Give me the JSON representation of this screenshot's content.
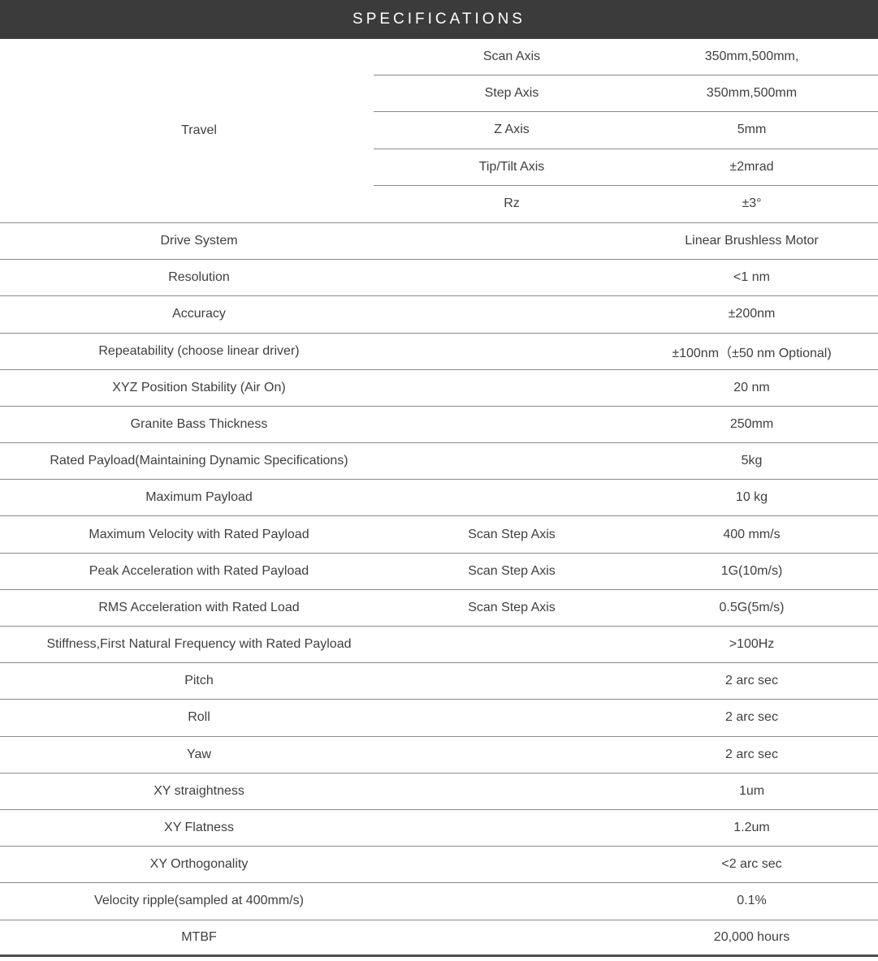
{
  "title": "SPECIFICATIONS",
  "colors": {
    "header_bg": "#3b3b3b",
    "header_text": "#ffffff",
    "body_text": "#3f3f3f",
    "divider": "#8a8a8a",
    "bottom_rule": "#4d4d4d"
  },
  "table": {
    "travel": {
      "label": "Travel",
      "rows": [
        {
          "param": "Scan Axis",
          "value": "350mm,500mm,"
        },
        {
          "param": "Step Axis",
          "value": "350mm,500mm"
        },
        {
          "param": "Z Axis",
          "value": "5mm"
        },
        {
          "param": "Tip/Tilt Axis",
          "value": "±2mrad"
        },
        {
          "param": "Rz",
          "value": "±3°"
        }
      ]
    },
    "rows": [
      {
        "label": "Drive System",
        "sub": "",
        "value": "Linear Brushless Motor"
      },
      {
        "label": "Resolution",
        "sub": "",
        "value": "<1 nm"
      },
      {
        "label": "Accuracy",
        "sub": "",
        "value": "±200nm"
      },
      {
        "label": "Repeatability (choose linear driver)",
        "sub": "",
        "value": "±100nm（±50 nm Optional)"
      },
      {
        "label": "XYZ Position Stability (Air On)",
        "sub": "",
        "value": "20 nm"
      },
      {
        "label": "Granite Bass Thickness",
        "sub": "",
        "value": "250mm"
      },
      {
        "label": "Rated Payload(Maintaining Dynamic Specifications)",
        "sub": "",
        "value": "5kg"
      },
      {
        "label": "Maximum Payload",
        "sub": "",
        "value": "10 kg"
      },
      {
        "label": "Maximum Velocity with Rated Payload",
        "sub": "Scan Step Axis",
        "value": "400 mm/s"
      },
      {
        "label": "Peak Acceleration with Rated Payload",
        "sub": "Scan Step Axis",
        "value": "1G(10m/s)"
      },
      {
        "label": "RMS Acceleration with Rated Load",
        "sub": "Scan Step Axis",
        "value": "0.5G(5m/s)"
      },
      {
        "label": "Stiffness,First Natural Frequency with Rated Payload",
        "sub": "",
        "value": ">100Hz"
      },
      {
        "label": "Pitch",
        "sub": "",
        "value": "2 arc sec"
      },
      {
        "label": "Roll",
        "sub": "",
        "value": "2 arc sec"
      },
      {
        "label": "Yaw",
        "sub": "",
        "value": "2 arc sec"
      },
      {
        "label": "XY straightness",
        "sub": "",
        "value": "1um"
      },
      {
        "label": "XY Flatness",
        "sub": "",
        "value": "1.2um"
      },
      {
        "label": "XY Orthogonality",
        "sub": "",
        "value": "<2 arc sec"
      },
      {
        "label": "Velocity ripple(sampled at 400mm/s)",
        "sub": "",
        "value": "0.1%"
      },
      {
        "label": "MTBF",
        "sub": "",
        "value": "20,000 hours"
      }
    ]
  }
}
